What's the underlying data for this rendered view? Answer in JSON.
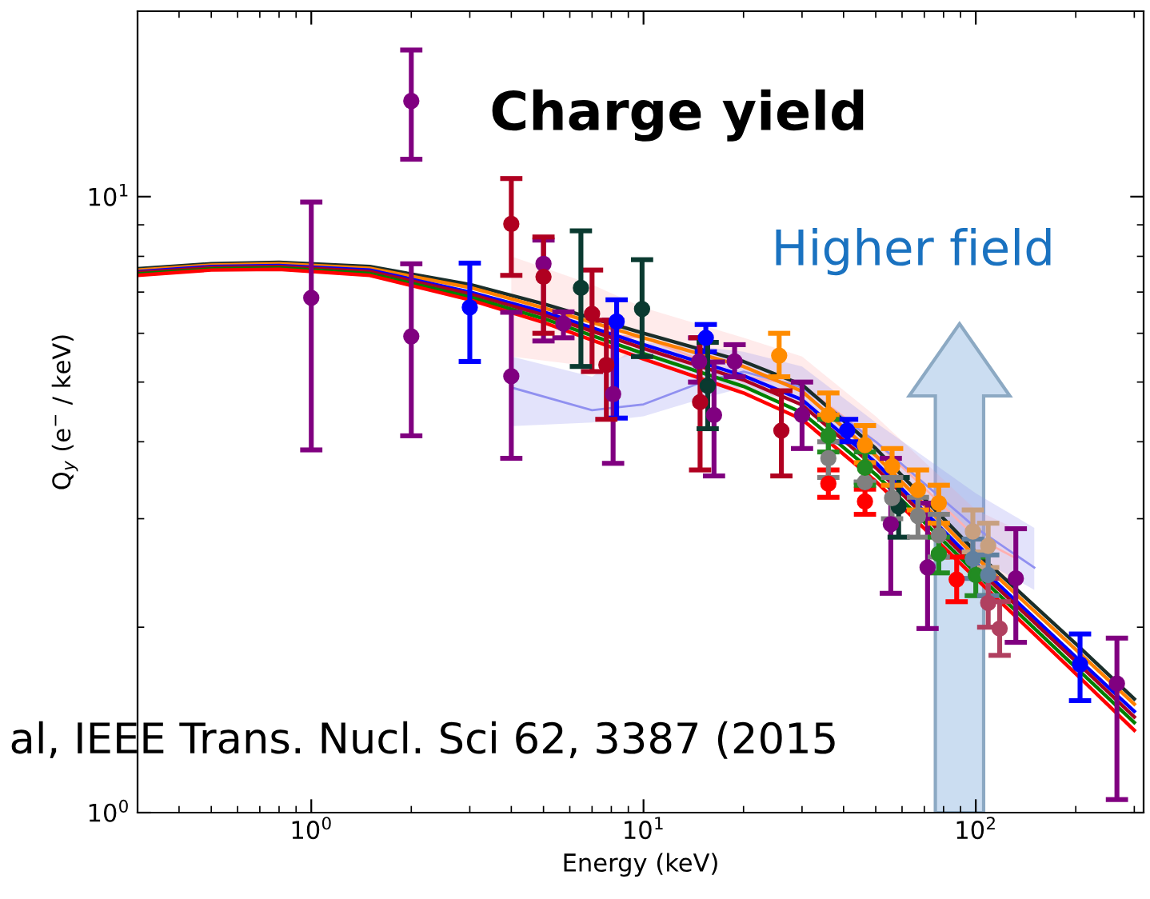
{
  "chart_data": {
    "type": "scatter",
    "xlabel": "Energy (keV)",
    "ylabel": "Q$_{y}$ (e$^{−}$ / keV)",
    "annotations": [
      "Charge yield",
      "Higher field",
      "al, IEEE Trans. Nucl. Sci 62, 3387 (2015"
    ],
    "xlim": [
      0.3,
      320
    ],
    "ylim": [
      1,
      20
    ],
    "xticks": [
      {
        "value": 1,
        "label": "10$^{0}$"
      },
      {
        "value": 10,
        "label": "10$^{1}$"
      },
      {
        "value": 100,
        "label": "10$^{2}$"
      }
    ],
    "yticks": [
      {
        "value": 1,
        "label": "10$^{0}$"
      },
      {
        "value": 10,
        "label": "10$^{1}$"
      }
    ],
    "log": "xy",
    "grid": false,
    "legend": false,
    "series": [
      {
        "type": "line",
        "color": "#ffb0b0",
        "x": [
          4,
          7,
          10,
          20,
          30,
          50,
          100,
          130
        ],
        "values": [
          6.6,
          6.0,
          5.9,
          5.1,
          4.95,
          4.0,
          2.8,
          2.6
        ],
        "lower": [
          5.5,
          5.3,
          5.6,
          4.8,
          4.6,
          3.7,
          2.5,
          2.4
        ],
        "upper": [
          8.0,
          7.2,
          6.6,
          5.9,
          5.5,
          4.4,
          3.1,
          2.9
        ]
      },
      {
        "type": "line",
        "color": "#9090f0",
        "x": [
          4,
          7,
          10,
          15,
          20,
          30,
          50,
          100,
          150
        ],
        "values": [
          4.9,
          4.5,
          4.6,
          5.0,
          5.2,
          4.9,
          4.0,
          2.9,
          2.5
        ],
        "lower": [
          4.24,
          4.3,
          4.4,
          4.7,
          4.9,
          4.6,
          3.7,
          2.6,
          2.3
        ],
        "upper": [
          5.5,
          5.1,
          5.8,
          5.7,
          5.6,
          5.3,
          4.3,
          3.3,
          2.9
        ]
      },
      {
        "type": "line",
        "color": "#1a2e2a",
        "x": [
          0.3,
          0.5,
          0.8,
          1.5,
          3,
          5,
          10,
          20,
          30,
          50,
          100,
          200,
          300
        ],
        "values": [
          7.64,
          7.78,
          7.82,
          7.7,
          7.2,
          6.7,
          6.0,
          5.4,
          4.95,
          3.9,
          2.65,
          1.88,
          1.53
        ]
      },
      {
        "type": "line",
        "color": "#ff8000",
        "x": [
          0.3,
          0.5,
          0.8,
          1.5,
          3,
          5,
          10,
          20,
          30,
          50,
          100,
          200,
          300
        ],
        "values": [
          7.6,
          7.74,
          7.78,
          7.65,
          7.12,
          6.6,
          5.9,
          5.3,
          4.83,
          3.8,
          2.6,
          1.84,
          1.5
        ]
      },
      {
        "type": "line",
        "color": "#0000ff",
        "x": [
          0.3,
          0.5,
          0.8,
          1.5,
          3,
          5,
          10,
          20,
          30,
          50,
          100,
          200,
          300
        ],
        "values": [
          7.55,
          7.7,
          7.73,
          7.6,
          7.0,
          6.5,
          5.75,
          5.12,
          4.68,
          3.7,
          2.54,
          1.79,
          1.46
        ]
      },
      {
        "type": "line",
        "color": "#aa0022",
        "x": [
          0.3,
          0.5,
          0.8,
          1.5,
          3,
          5,
          10,
          20,
          30,
          50,
          100,
          200,
          300
        ],
        "values": [
          7.53,
          7.67,
          7.7,
          7.56,
          6.95,
          6.43,
          5.67,
          5.04,
          4.59,
          3.63,
          2.5,
          1.76,
          1.43
        ]
      },
      {
        "type": "line",
        "color": "#008000",
        "x": [
          0.3,
          0.5,
          0.8,
          1.5,
          3,
          5,
          10,
          20,
          30,
          50,
          100,
          200,
          300
        ],
        "values": [
          7.49,
          7.63,
          7.66,
          7.5,
          6.87,
          6.34,
          5.56,
          4.92,
          4.46,
          3.54,
          2.45,
          1.72,
          1.4
        ]
      },
      {
        "type": "line",
        "color": "#ff0000",
        "x": [
          0.3,
          0.5,
          0.8,
          1.5,
          3,
          5,
          10,
          20,
          30,
          50,
          100,
          200,
          300
        ],
        "values": [
          7.45,
          7.6,
          7.62,
          7.45,
          6.8,
          6.25,
          5.45,
          4.8,
          4.35,
          3.45,
          2.4,
          1.68,
          1.36
        ]
      },
      {
        "marker": "circle",
        "color": "#800080",
        "x": [
          1,
          2,
          2,
          4,
          5,
          5.74,
          8.1,
          14.7,
          16.3,
          18.8,
          30,
          55.5,
          71.6,
          132,
          266
        ],
        "values": [
          6.85,
          14.3,
          5.93,
          5.11,
          7.78,
          6.22,
          4.78,
          5.4,
          4.42,
          5.4,
          4.42,
          2.94,
          2.5,
          2.4,
          1.62
        ],
        "errors": [
          [
            3.88,
            9.8
          ],
          [
            11.5,
            17.3
          ],
          [
            4.09,
            7.78
          ],
          [
            3.76,
            6.49
          ],
          [
            5.83,
            8.5
          ],
          [
            5.9,
            6.5
          ],
          [
            3.69,
            6.3
          ],
          [
            5.0,
            5.9
          ],
          [
            3.52,
            5.39
          ],
          [
            5.1,
            5.75
          ],
          [
            3.9,
            5.0
          ],
          [
            2.27,
            3.76
          ],
          [
            1.99,
            3.18
          ],
          [
            1.89,
            2.89
          ],
          [
            1.05,
            1.92
          ]
        ]
      },
      {
        "marker": "circle",
        "color": "#0000ff",
        "x": [
          3,
          8.3,
          15.4,
          41,
          206
        ],
        "values": [
          6.61,
          6.27,
          5.9,
          4.17,
          1.74
        ],
        "errors": [
          [
            5.4,
            7.8
          ],
          [
            4.37,
            6.8
          ],
          [
            5.6,
            6.2
          ],
          [
            4.0,
            4.35
          ],
          [
            1.52,
            1.95
          ]
        ]
      },
      {
        "marker": "circle",
        "color": "#b00020",
        "x": [
          4,
          5,
          7,
          7.73,
          14.8,
          26
        ],
        "values": [
          9.03,
          7.41,
          6.45,
          5.33,
          4.64,
          4.17
        ],
        "errors": [
          [
            7.45,
            10.7
          ],
          [
            6.0,
            8.6
          ],
          [
            5.2,
            7.6
          ],
          [
            4.35,
            6.3
          ],
          [
            3.6,
            5.9
          ],
          [
            3.52,
            4.84
          ]
        ]
      },
      {
        "marker": "circle",
        "color": "#ff0000",
        "x": [
          36,
          46.4,
          87.6
        ],
        "values": [
          3.42,
          3.2,
          2.39
        ],
        "errors": [
          [
            3.25,
            3.6
          ],
          [
            3.05,
            3.35
          ],
          [
            2.2,
            2.6
          ]
        ]
      },
      {
        "marker": "circle",
        "color": "#0a3a30",
        "x": [
          6.48,
          9.9,
          15.6,
          58.6
        ],
        "values": [
          7.11,
          6.57,
          4.93,
          3.14
        ],
        "errors": [
          [
            5.3,
            8.8
          ],
          [
            5.5,
            7.9
          ],
          [
            4.2,
            5.8
          ],
          [
            2.8,
            3.5
          ]
        ]
      },
      {
        "marker": "circle",
        "color": "#ff8c00",
        "x": [
          25.6,
          36,
          46.4,
          56,
          67,
          77.4
        ],
        "values": [
          5.52,
          4.42,
          3.95,
          3.65,
          3.34,
          3.18
        ],
        "errors": [
          [
            5.1,
            6.0
          ],
          [
            4.42,
            4.8
          ],
          [
            3.7,
            4.25
          ],
          [
            3.4,
            3.9
          ],
          [
            3.1,
            3.6
          ],
          [
            2.95,
            3.4
          ]
        ]
      },
      {
        "marker": "circle",
        "color": "#808080",
        "x": [
          36,
          46.4,
          56,
          67,
          77.4
        ],
        "values": [
          3.76,
          3.44,
          3.24,
          3.03,
          2.82
        ],
        "errors": [
          [
            3.5,
            4.0
          ],
          null,
          [
            3.0,
            3.5
          ],
          [
            2.8,
            3.25
          ],
          [
            2.6,
            3.05
          ]
        ]
      },
      {
        "marker": "circle",
        "color": "#228b22",
        "x": [
          36,
          46.4,
          77.4,
          100
        ],
        "values": [
          4.09,
          3.63,
          2.63,
          2.43
        ],
        "errors": [
          [
            3.85,
            4.35
          ],
          [
            3.4,
            3.85
          ],
          [
            2.45,
            2.8
          ],
          [
            2.25,
            2.6
          ]
        ]
      },
      {
        "marker": "circle",
        "color": "#c8a080",
        "x": [
          98,
          109
        ],
        "values": [
          2.86,
          2.71
        ],
        "errors": [
          [
            2.65,
            3.1
          ],
          [
            2.5,
            2.95
          ]
        ]
      },
      {
        "marker": "circle",
        "color": "#6080a0",
        "x": [
          98,
          109
        ],
        "values": [
          2.58,
          2.43
        ],
        "errors": [
          [
            2.4,
            2.78
          ],
          [
            2.25,
            2.62
          ]
        ]
      },
      {
        "marker": "circle",
        "color": "#b04060",
        "x": [
          109,
          118
        ],
        "values": [
          2.19,
          1.99
        ],
        "errors": [
          [
            2.0,
            2.4
          ],
          [
            1.8,
            2.2
          ]
        ]
      }
    ]
  }
}
